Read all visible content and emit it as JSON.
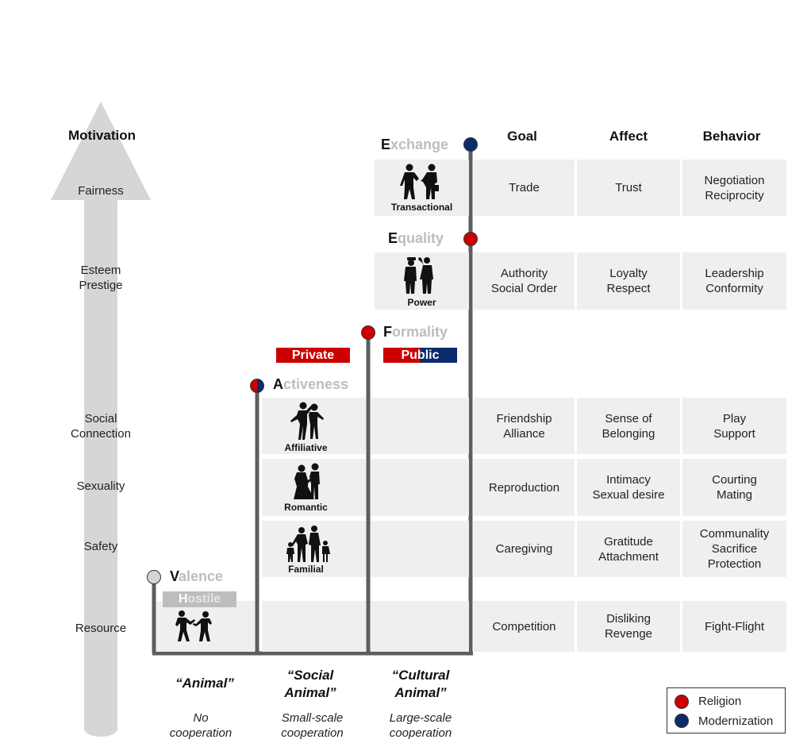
{
  "motivation": {
    "title": "Motivation",
    "levels": {
      "fairness": "Fairness",
      "esteem": "Esteem\nPrestige",
      "social": "Social\nConnection",
      "sexuality": "Sexuality",
      "safety": "Safety",
      "resource": "Resource"
    }
  },
  "columns": {
    "goal": "Goal",
    "affect": "Affect",
    "behavior": "Behavior"
  },
  "stages": {
    "exchange": {
      "initial": "E",
      "rest": "xchange"
    },
    "equality": {
      "initial": "E",
      "rest": "quality"
    },
    "formality": {
      "initial": "F",
      "rest": "ormality"
    },
    "activeness": {
      "initial": "A",
      "rest": "ctiveness"
    },
    "valence": {
      "initial": "V",
      "rest": "alence"
    }
  },
  "tags": {
    "private": "Private",
    "public": "Public",
    "hostile_initial": "H",
    "hostile_rest": "ostile"
  },
  "rows": {
    "transactional": {
      "caption": "Transactional",
      "goal": "Trade",
      "affect": "Trust",
      "behavior": "Negotiation\nReciprocity"
    },
    "power": {
      "caption": "Power",
      "goal": "Authority\nSocial Order",
      "affect": "Loyalty\nRespect",
      "behavior": "Leadership\nConformity"
    },
    "affiliative": {
      "caption": "Affiliative",
      "goal": "Friendship\nAlliance",
      "affect": "Sense of\nBelonging",
      "behavior": "Play\nSupport"
    },
    "romantic": {
      "caption": "Romantic",
      "goal": "Reproduction",
      "affect": "Intimacy\nSexual desire",
      "behavior": "Courting\nMating"
    },
    "familial": {
      "caption": "Familial",
      "goal": "Caregiving",
      "affect": "Gratitude\nAttachment",
      "behavior": "Communality\nSacrifice\nProtection"
    },
    "hostile": {
      "goal": "Competition",
      "affect": "Disliking\nRevenge",
      "behavior": "Fight-Flight"
    }
  },
  "eras": {
    "animal": {
      "label": "“Animal”",
      "coop": "No\ncooperation"
    },
    "social_animal": {
      "label": "“Social\nAnimal”",
      "coop": "Small-scale\ncooperation"
    },
    "cultural_animal": {
      "label": "“Cultural\nAnimal”",
      "coop": "Large-scale\ncooperation"
    }
  },
  "legend": {
    "religion": "Religion",
    "modernization": "Modernization"
  },
  "colors": {
    "religion": "#cc0000",
    "modernization": "#0d2a6b",
    "arrow": "#d6d6d6",
    "stair": "#5e5e5e",
    "band": "#efefef",
    "faded_text": "#bdbdbd"
  }
}
